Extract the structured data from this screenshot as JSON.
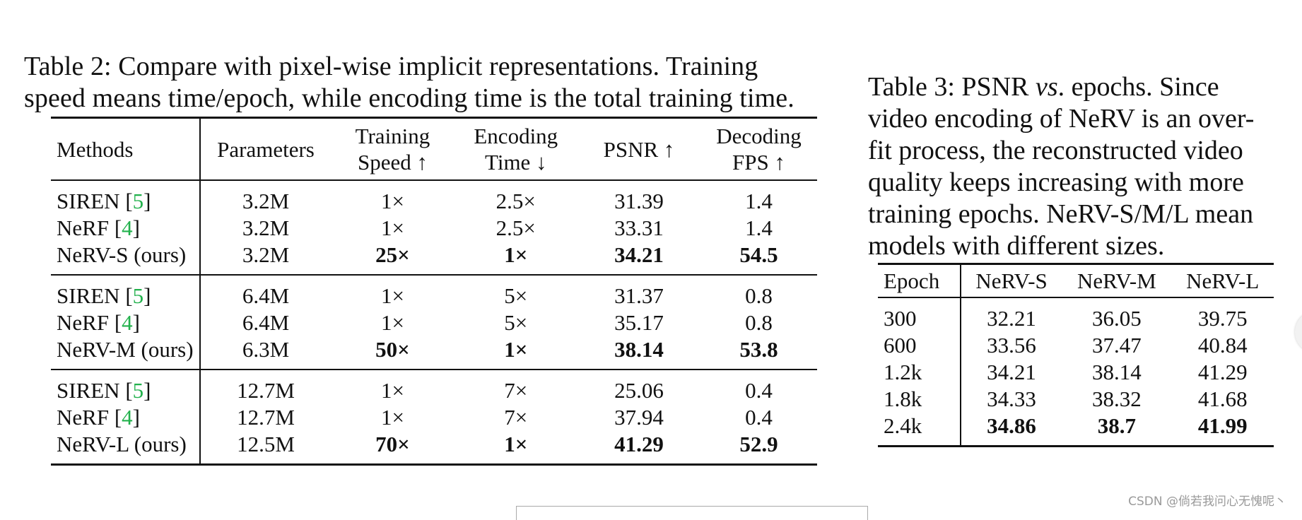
{
  "table2": {
    "caption_lines": [
      "Table 2:  Compare with pixel-wise implicit representations.  Training",
      "speed means time/epoch, while encoding time is the total training time."
    ],
    "headers": {
      "methods": "Methods",
      "parameters": "Parameters",
      "training_speed": [
        "Training",
        "Speed ↑"
      ],
      "encoding_time": [
        "Encoding",
        "Time ↓"
      ],
      "psnr": "PSNR ↑",
      "decoding_fps": [
        "Decoding",
        "FPS ↑"
      ]
    },
    "groups": [
      {
        "rows": [
          {
            "method": "SIREN [",
            "ref": "5",
            "close": "]",
            "params": "3.2M",
            "speed": "1×",
            "enc": "2.5×",
            "psnr": "31.39",
            "fps": "1.4",
            "bold": false
          },
          {
            "method": "NeRF [",
            "ref": "4",
            "close": "]",
            "params": "3.2M",
            "speed": "1×",
            "enc": "2.5×",
            "psnr": "33.31",
            "fps": "1.4",
            "bold": false
          },
          {
            "method": "NeRV-S (ours)",
            "ref": "",
            "close": "",
            "params": "3.2M",
            "speed": "25×",
            "enc": "1×",
            "psnr": "34.21",
            "fps": "54.5",
            "bold": true
          }
        ]
      },
      {
        "rows": [
          {
            "method": "SIREN [",
            "ref": "5",
            "close": "]",
            "params": "6.4M",
            "speed": "1×",
            "enc": "5×",
            "psnr": "31.37",
            "fps": "0.8",
            "bold": false
          },
          {
            "method": "NeRF [",
            "ref": "4",
            "close": "]",
            "params": "6.4M",
            "speed": "1×",
            "enc": "5×",
            "psnr": "35.17",
            "fps": "0.8",
            "bold": false
          },
          {
            "method": "NeRV-M (ours)",
            "ref": "",
            "close": "",
            "params": "6.3M",
            "speed": "50×",
            "enc": "1×",
            "psnr": "38.14",
            "fps": "53.8",
            "bold": true
          }
        ]
      },
      {
        "rows": [
          {
            "method": "SIREN [",
            "ref": "5",
            "close": "]",
            "params": "12.7M",
            "speed": "1×",
            "enc": "7×",
            "psnr": "25.06",
            "fps": "0.4",
            "bold": false
          },
          {
            "method": "NeRF [",
            "ref": "4",
            "close": "]",
            "params": "12.7M",
            "speed": "1×",
            "enc": "7×",
            "psnr": "37.94",
            "fps": "0.4",
            "bold": false
          },
          {
            "method": "NeRV-L (ours)",
            "ref": "",
            "close": "",
            "params": "12.5M",
            "speed": "70×",
            "enc": "1×",
            "psnr": "41.29",
            "fps": "52.9",
            "bold": true
          }
        ]
      }
    ]
  },
  "table3": {
    "caption_lines": [
      "Table 3:  PSNR vs. epochs.  Since",
      "video encoding of NeRV is an over-",
      "fit process, the reconstructed video",
      "quality keeps increasing with more",
      "training epochs. NeRV-S/M/L mean",
      "models with different sizes."
    ],
    "headers": [
      "Epoch",
      "NeRV-S",
      "NeRV-M",
      "NeRV-L"
    ],
    "rows": [
      {
        "epoch": "300",
        "s": "32.21",
        "m": "36.05",
        "l": "39.75",
        "bold": false
      },
      {
        "epoch": "600",
        "s": "33.56",
        "m": "37.47",
        "l": "40.84",
        "bold": false
      },
      {
        "epoch": "1.2k",
        "s": "34.21",
        "m": "38.14",
        "l": "41.29",
        "bold": false
      },
      {
        "epoch": "1.8k",
        "s": "34.33",
        "m": "38.32",
        "l": "41.68",
        "bold": false
      },
      {
        "epoch": "2.4k",
        "s": "34.86",
        "m": "38.7",
        "l": "41.99",
        "bold": true
      }
    ]
  },
  "watermark": "CSDN @倘若我问心无愧呢丶",
  "colors": {
    "citation": "#22b14c",
    "text": "#111111"
  }
}
